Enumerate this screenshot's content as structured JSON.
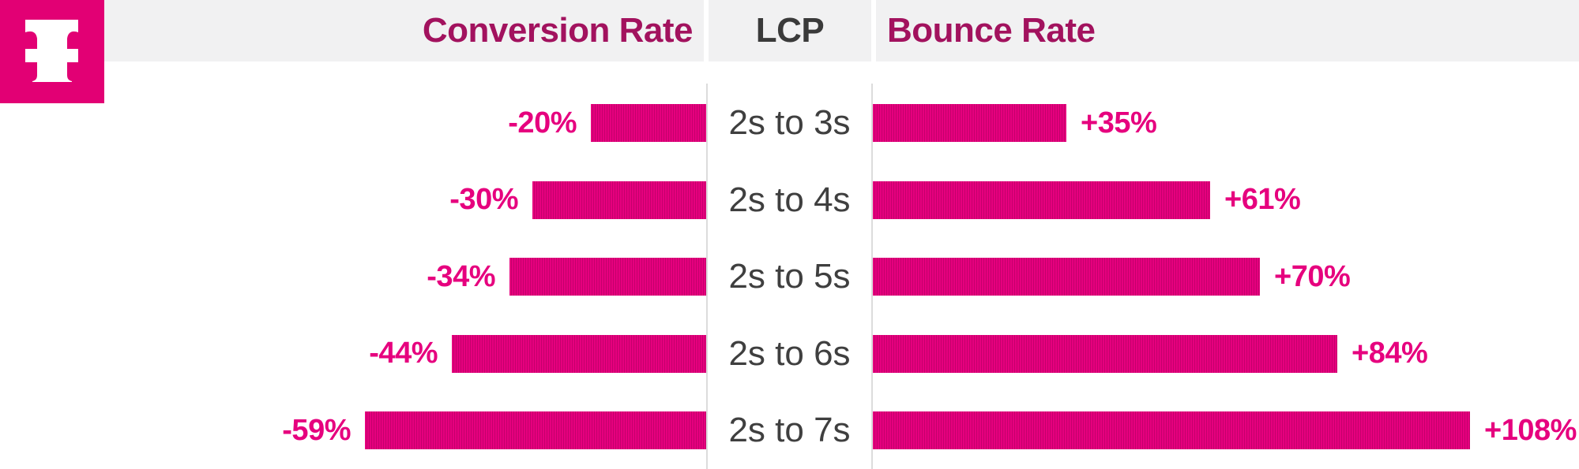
{
  "brand": {
    "logo": "telekom-t-logo",
    "logo_color": "#e20074"
  },
  "header": {
    "conversion_label": "Conversion Rate",
    "lcp_label": "LCP",
    "bounce_label": "Bounce Rate"
  },
  "chart_data": {
    "type": "bar",
    "subtype": "tornado",
    "orientation": "horizontal",
    "title": "",
    "categories": [
      "2s to 3s",
      "2s to 4s",
      "2s to 5s",
      "2s to 6s",
      "2s to 7s"
    ],
    "category_axis_label": "LCP",
    "series": [
      {
        "name": "Conversion Rate",
        "side": "left",
        "values": [
          -20,
          -30,
          -34,
          -44,
          -59
        ],
        "labels": [
          "-20%",
          "-30%",
          "-34%",
          "-44%",
          "-59%"
        ]
      },
      {
        "name": "Bounce Rate",
        "side": "right",
        "values": [
          35,
          61,
          70,
          84,
          108
        ],
        "labels": [
          "+35%",
          "+61%",
          "+70%",
          "+84%",
          "+108%"
        ]
      }
    ],
    "grid": false,
    "value_axis_visible": false,
    "legend_position": "column-headers",
    "colors": {
      "bar": "#e6007e",
      "bar_stripe": "#c4006c",
      "value_label": "#e6007e",
      "category_label": "#3f3f3f",
      "header_accent": "#a2125e",
      "header_neutral": "#3a3a3a",
      "header_band": "#f1f1f2",
      "divider": "#dcdcdc"
    }
  }
}
